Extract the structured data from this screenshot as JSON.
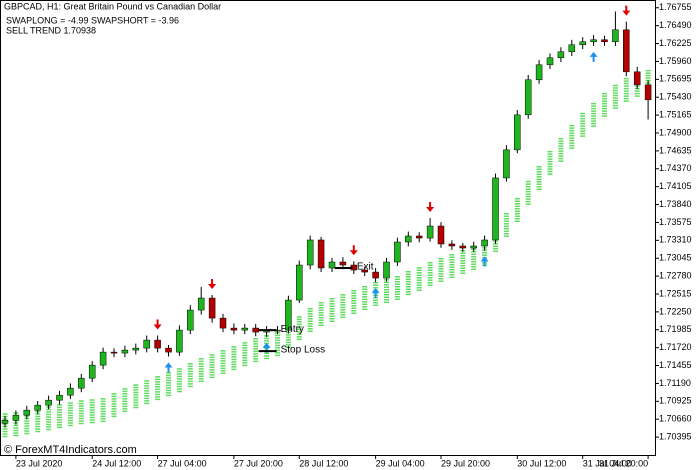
{
  "chart_data": {
    "type": "candlestick",
    "title": "GBPCAD, H1:  Great Britain Pound vs Canadian Dollar",
    "subtitle": "SWAPLONG = -4.99   SWAPSHORT = -3.96",
    "trend_label": "SELL TREND 1.70938",
    "watermark": "© ForexMT4Indicators.com",
    "categories": [
      null,
      "23 Jul 2020",
      null,
      null,
      null,
      null,
      null,
      null,
      "24 Jul 12:00",
      null,
      null,
      null,
      null,
      null,
      "27 Jul 04:00",
      null,
      null,
      null,
      null,
      null,
      null,
      "27 Jul 20:00",
      null,
      null,
      null,
      null,
      null,
      "28 Jul 12:00",
      null,
      null,
      null,
      null,
      null,
      null,
      "29 Jul 04:00",
      null,
      null,
      null,
      null,
      null,
      "29 Jul 20:00",
      null,
      null,
      null,
      null,
      null,
      null,
      "30 Jul 12:00",
      null,
      null,
      null,
      null,
      null,
      "31 Jul 04:00",
      null,
      null,
      null,
      null,
      null,
      "31 Jul 20:00"
    ],
    "open": [
      1.706,
      1.70645,
      1.7072,
      1.70794,
      1.70868,
      1.70942,
      1.71016,
      1.7112,
      1.71268,
      1.71461,
      1.71654,
      1.7164,
      1.71684,
      1.71713,
      1.71832,
      1.71713,
      1.71654,
      1.7198,
      1.72277,
      1.72455,
      1.72158,
      1.7201,
      1.7198,
      1.7201,
      1.71951,
      1.7198,
      1.7198,
      1.72425,
      1.72944,
      1.73315,
      1.729,
      1.72989,
      1.72944,
      1.7287,
      1.7284,
      1.72751,
      1.72989,
      1.73285,
      1.73374,
      1.73344,
      1.73522,
      1.73256,
      1.73226,
      1.73196,
      1.73226,
      1.73315,
      1.74234,
      1.7465,
      1.75169,
      1.75688,
      1.7591,
      1.76014,
      1.76103,
      1.76207,
      1.76251,
      1.76281,
      1.76251,
      1.76429,
      1.75806,
      1.75613
    ],
    "high": [
      1.7071,
      1.7079,
      1.7086,
      1.7093,
      1.7101,
      1.7108,
      1.7119,
      1.7133,
      1.7152,
      1.7172,
      1.7171,
      1.7175,
      1.7178,
      1.719,
      1.719,
      1.7176,
      1.7205,
      1.7235,
      1.7262,
      1.725,
      1.7222,
      1.7208,
      1.7207,
      1.7207,
      1.7204,
      1.7204,
      1.7249,
      1.7301,
      1.7338,
      1.7336,
      1.7305,
      1.7306,
      1.73,
      1.7292,
      1.729,
      1.7305,
      1.7335,
      1.7344,
      1.7343,
      1.7364,
      1.7358,
      1.7331,
      1.7327,
      1.7329,
      1.7338,
      1.743,
      1.7472,
      1.7524,
      1.7576,
      1.7598,
      1.7608,
      1.7617,
      1.7628,
      1.7632,
      1.7635,
      1.7634,
      1.767,
      1.7655,
      1.7588,
      1.7568
    ],
    "low": [
      1.7054,
      1.7058,
      1.7066,
      1.7074,
      1.7081,
      1.7088,
      1.7096,
      1.7106,
      1.7121,
      1.714,
      1.7158,
      1.7158,
      1.7162,
      1.7165,
      1.7165,
      1.7159,
      1.716,
      1.7192,
      1.7221,
      1.7209,
      1.7195,
      1.7192,
      1.7192,
      1.7189,
      1.7188,
      1.7192,
      1.7193,
      1.7238,
      1.7288,
      1.7284,
      1.7284,
      1.7288,
      1.7281,
      1.7278,
      1.7269,
      1.727,
      1.7293,
      1.7322,
      1.7328,
      1.7329,
      1.732,
      1.7317,
      1.7314,
      1.7314,
      1.7316,
      1.7326,
      1.7418,
      1.746,
      1.7511,
      1.7563,
      1.7585,
      1.7595,
      1.7604,
      1.7614,
      1.7619,
      1.7619,
      1.7619,
      1.7574,
      1.7555,
      1.751
    ],
    "close": [
      1.70645,
      1.7072,
      1.70794,
      1.70868,
      1.70942,
      1.71016,
      1.7112,
      1.71268,
      1.71461,
      1.71654,
      1.7164,
      1.71684,
      1.71713,
      1.71832,
      1.71713,
      1.71654,
      1.7198,
      1.72277,
      1.72455,
      1.72158,
      1.7201,
      1.7198,
      1.7201,
      1.71951,
      1.7198,
      1.7198,
      1.72425,
      1.72944,
      1.73315,
      1.729,
      1.72989,
      1.72944,
      1.7287,
      1.7284,
      1.72751,
      1.72989,
      1.73285,
      1.73374,
      1.73344,
      1.73522,
      1.73256,
      1.73226,
      1.73196,
      1.73226,
      1.73315,
      1.74234,
      1.7465,
      1.75169,
      1.75688,
      1.7591,
      1.76014,
      1.76103,
      1.76207,
      1.76251,
      1.76281,
      1.76251,
      1.76429,
      1.75806,
      1.75613,
      1.75391
    ],
    "bull_color": "#1fb51f",
    "bear_color": "#b40000",
    "band": {
      "color": "#3ad43a",
      "values": [
        1.70571,
        1.70586,
        1.70616,
        1.70645,
        1.70675,
        1.70705,
        1.70734,
        1.70764,
        1.70779,
        1.70794,
        1.70868,
        1.70942,
        1.71001,
        1.71061,
        1.7112,
        1.71179,
        1.71238,
        1.71313,
        1.71387,
        1.71446,
        1.71505,
        1.71565,
        1.71624,
        1.71684,
        1.71728,
        1.71773,
        1.71891,
        1.7201,
        1.72129,
        1.72218,
        1.72277,
        1.72336,
        1.72396,
        1.72455,
        1.72514,
        1.72559,
        1.72603,
        1.72677,
        1.72737,
        1.72811,
        1.7287,
        1.72929,
        1.72989,
        1.73048,
        1.73107,
        1.73315,
        1.73537,
        1.7376,
        1.74012,
        1.74234,
        1.74457,
        1.7465,
        1.74842,
        1.7502,
        1.75169,
        1.75317,
        1.75436,
        1.75539,
        1.75613,
        1.75658
      ]
    },
    "buy_signals": [
      15,
      24,
      34,
      44,
      54
    ],
    "sell_signals": [
      14,
      19,
      32,
      39,
      57
    ],
    "annotations": [
      {
        "text": "Exit",
        "value": 1.729,
        "index": 31
      },
      {
        "text": "Entry",
        "value": 1.7198,
        "index": 24
      },
      {
        "text": "Stop Loss",
        "value": 1.71669,
        "index": 24
      }
    ],
    "ylim": [
      1.7013,
      1.7687
    ],
    "yticks": [
      1.70395,
      {
        "value": 1.7066,
        "label": "1.70660"
      },
      1.70925,
      {
        "value": 1.7119,
        "label": "1.71190"
      },
      1.71455,
      {
        "value": 1.7172,
        "label": "1.71720"
      },
      1.71985,
      {
        "value": 1.7225,
        "label": "1.72250"
      },
      1.72515,
      {
        "value": 1.7278,
        "label": "1.72780"
      },
      1.73045,
      {
        "value": 1.7331,
        "label": "1.73310"
      },
      1.73575,
      {
        "value": 1.7384,
        "label": "1.73840"
      },
      1.74105,
      {
        "value": 1.7437,
        "label": "1.74370"
      },
      1.74635,
      {
        "value": 1.749,
        "label": "1.74900"
      },
      1.75165,
      {
        "value": 1.7543,
        "label": "1.75430"
      },
      1.75695,
      {
        "value": 1.7596,
        "label": "1.75960"
      },
      1.76225,
      {
        "value": 1.7649,
        "label": "1.76490"
      },
      1.76755
    ]
  }
}
